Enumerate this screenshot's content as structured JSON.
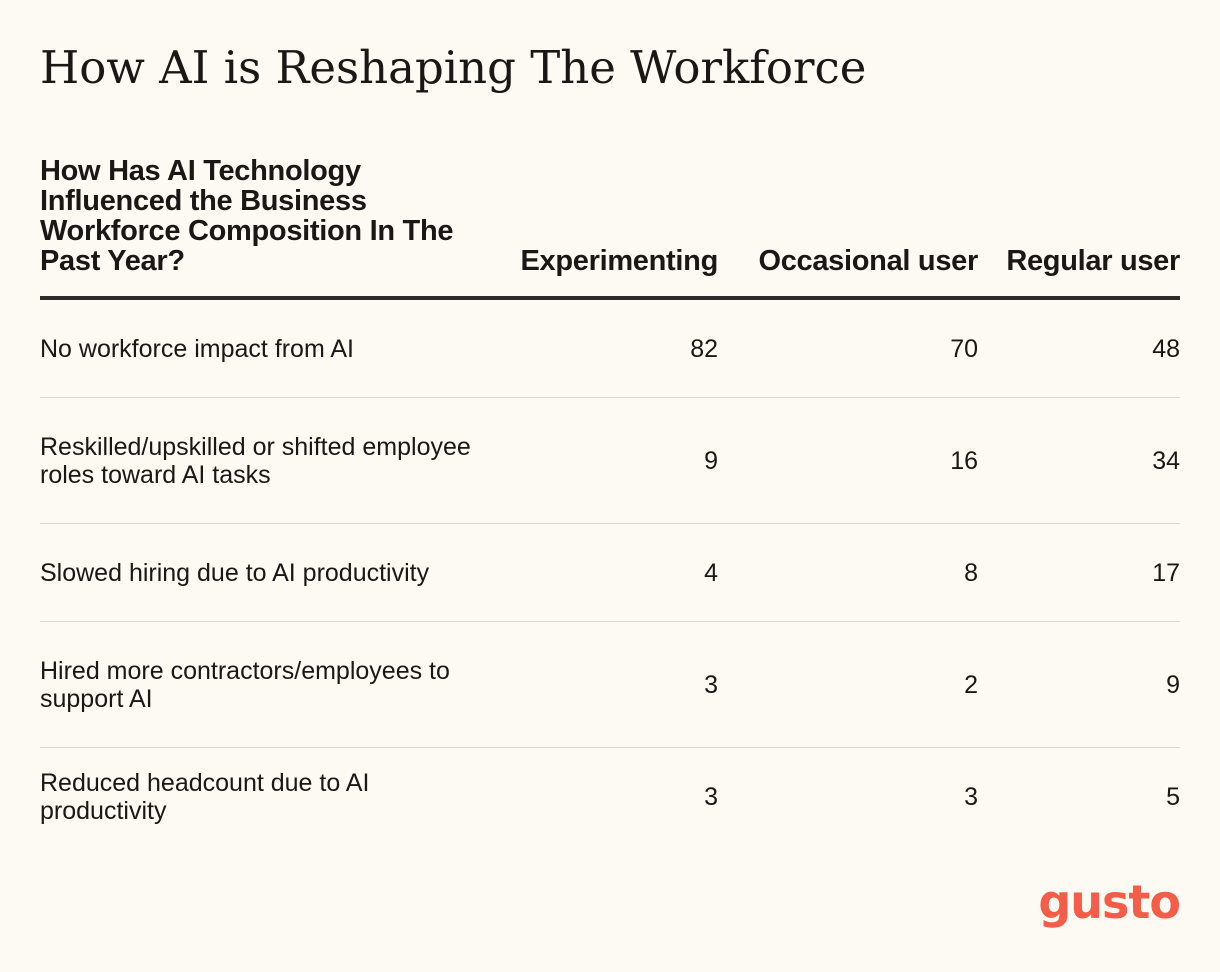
{
  "title": "How AI is Reshaping The Workforce",
  "table": {
    "headers": [
      "How Has AI Technology Influenced the Business Workforce Composition In The Past Year?",
      "Experimenting",
      "Occasional user",
      "Regular user"
    ],
    "rows": [
      {
        "label": "No workforce impact from AI",
        "values": [
          "82",
          "70",
          "48"
        ]
      },
      {
        "label": "Reskilled/upskilled or shifted employee roles toward AI tasks",
        "values": [
          "9",
          "16",
          "34"
        ]
      },
      {
        "label": "Slowed hiring due to AI productivity",
        "values": [
          "4",
          "8",
          "17"
        ]
      },
      {
        "label": "Hired more contractors/employees to support AI",
        "values": [
          "3",
          "2",
          "9"
        ]
      },
      {
        "label": "Reduced headcount due to AI productivity",
        "values": [
          "3",
          "3",
          "5"
        ]
      }
    ]
  },
  "logo": {
    "text": "gusto",
    "color": "#f45d48"
  },
  "colors": {
    "background": "#fdfaf3",
    "text": "#1a1716",
    "header_rule": "#2e2b2a",
    "row_divider": "#dcd6cc"
  }
}
